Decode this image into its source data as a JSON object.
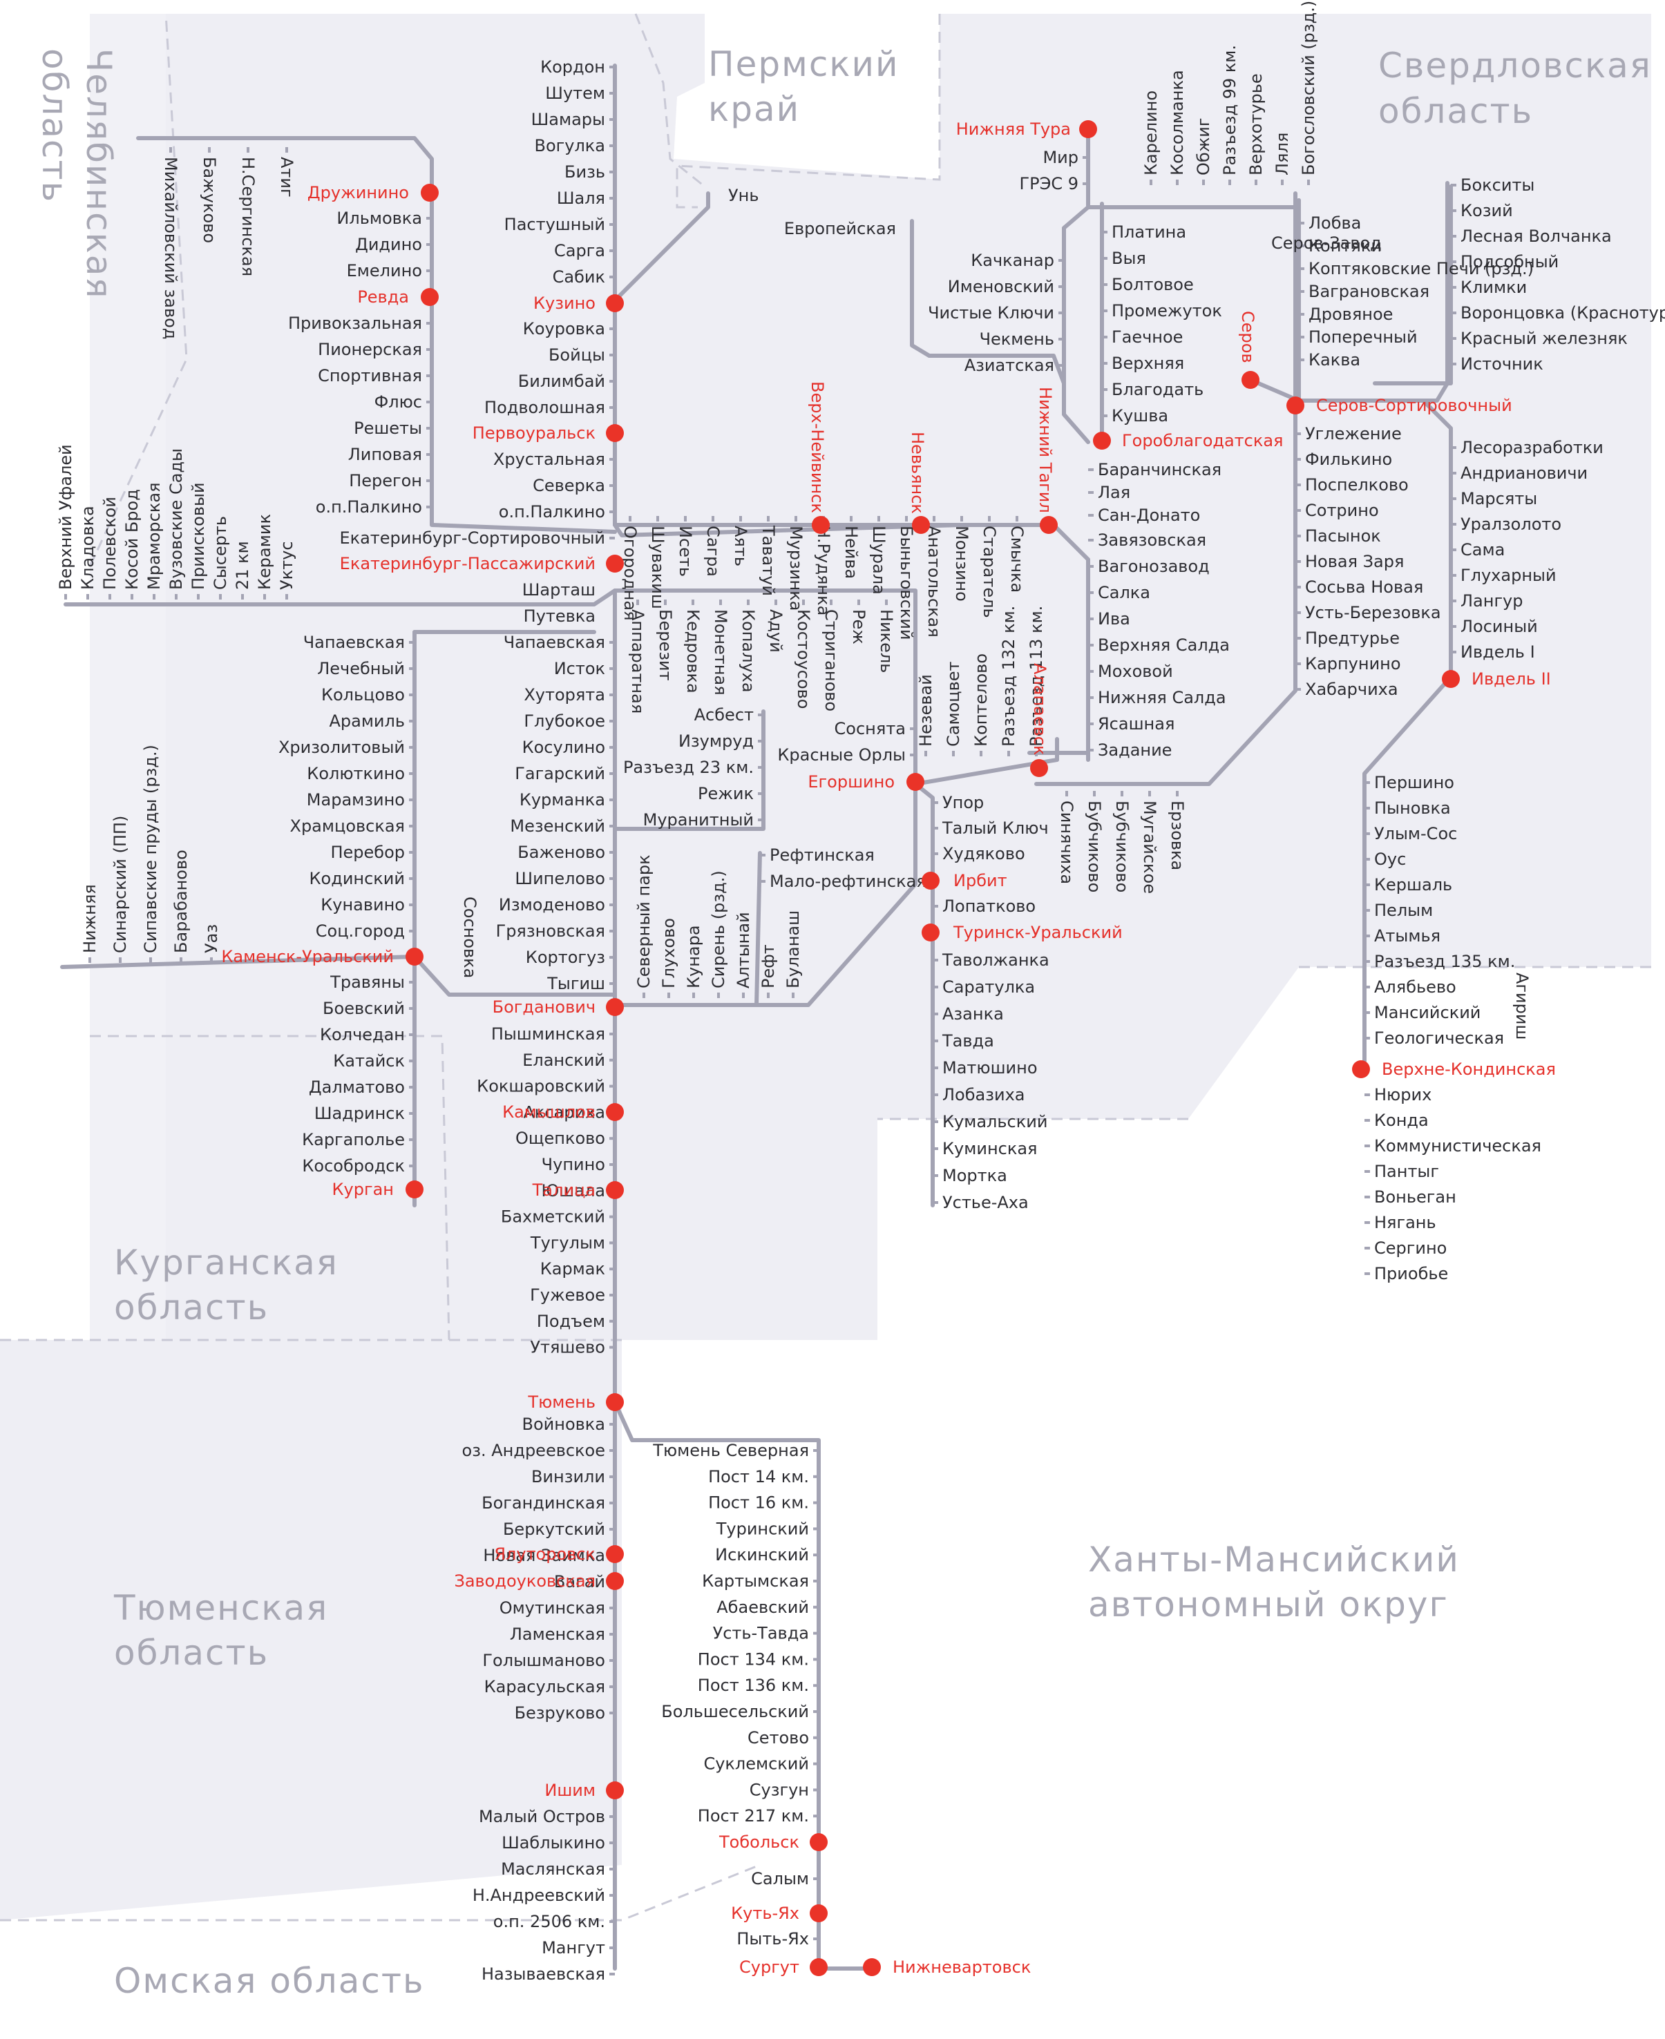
{
  "colors": {
    "rail": "#a3a3b3",
    "hub": "#ea3328",
    "hub_text": "#e5312b",
    "station_text": "#2e2e33",
    "region_text": "#a8a8b4",
    "region_fill": "#eeeef4"
  },
  "regions": {
    "perm": [
      "Пермский",
      "край"
    ],
    "sverdlovsk": [
      "Свердловская",
      "область"
    ],
    "chelyabinsk": [
      "Челябинская",
      "область"
    ],
    "kurgan": [
      "Курганская",
      "область"
    ],
    "tyumen": [
      "Тюменская",
      "область"
    ],
    "khmao": [
      "Ханты-Мансийский",
      "автономный округ"
    ],
    "omsk": [
      "Омская область"
    ]
  },
  "hubs": {
    "druzhinino": "Дружинино",
    "revda": "Ревда",
    "kuzino": "Кузино",
    "pervouralsk": "Первоуральск",
    "ekb": "Екатеринбург-Пассажирский",
    "nizhnyaya_tura": "Нижняя Тура",
    "serov": "Серов",
    "serov_sort": "Серов-Сортировочный",
    "goroblagodatskaya": "Гороблагодатская",
    "verkh_neyvinsk": "Верх-Нейвинск",
    "nevyansk": "Невьянск",
    "nizhniy_tagil": "Нижний Тагил",
    "alapaevsk": "Алапаевск",
    "egorshino": "Егоршино",
    "irbit": "Ирбит",
    "turinsk": "Туринск-Уральский",
    "ivdel": "Ивдель II",
    "verkhne_kondinskaya": "Верхне-Кондинская",
    "kamensk": "Каменск-Уральский",
    "bogdanovich": "Богданович",
    "kamyshlov": "Камышлов",
    "talitsa": "Талица",
    "kurgan": "Курган",
    "tyumen": "Тюмень",
    "yalutorovsk": "Ялуторовск",
    "zavodoukovskaya": "Заводоуковская",
    "ishim": "Ишим",
    "tobolsk": "Тобольск",
    "kut_yakh": "Куть-Ях",
    "surgut": "Сургут",
    "nizhnevartovsk": "Нижневартовск"
  },
  "stations": {
    "perm_main": [
      "Кордон",
      "Шутем",
      "Шамары",
      "Вогулка",
      "Бизь",
      "Шаля",
      "Пастушный",
      "Сарга",
      "Сабик"
    ],
    "kuzino_ekb": [
      "Коуровка",
      "Бойцы",
      "Билимбай",
      "Подволошная"
    ],
    "perv_ekb": [
      "Хрустальная",
      "Северка",
      "о.п.Палкино",
      "Екатеринбург-Сортировочный"
    ],
    "druzh_revda": [
      "Ильмовка",
      "Дидино",
      "Емелино"
    ],
    "revda_sort": [
      "Привокзальная",
      "Пионерская",
      "Спортивная",
      "Флюс",
      "Решеты",
      "Липовая",
      "Перегон",
      "о.п.Палкино"
    ],
    "ufa_line": [
      "Верхний Уфалей",
      "Кладовка",
      "Полевской",
      "Косой Брод",
      "Мраморская",
      "Вузовские Сады",
      "Приисковый",
      "Сысерть",
      "21 км",
      "Керамик",
      "Уктус"
    ],
    "mikh_line": [
      "Михайловский завод",
      "Бажуково",
      "Н.Сергинская",
      "Атиг"
    ],
    "un": "Унь",
    "evropeyskaya": "Европейская",
    "nt_branch": [
      "Мир",
      "ГРЭС 9"
    ],
    "north_top": [
      "Карелино",
      "Косолманка",
      "Обжиг",
      "Разъезд 99 км.",
      "Верхотурье",
      "Ляля",
      "Богословский (рзд.)"
    ],
    "gorob_line": [
      "Платина",
      "Выя",
      "Болтовое",
      "Промежуток",
      "Гаечное",
      "Верхняя",
      "Благодать",
      "Кушва"
    ],
    "kach_line": [
      "Качканар",
      "Именовский",
      "Чистые Ключи",
      "Чекмень",
      "Азиатская"
    ],
    "serov_north": [
      "Лобва",
      "Коптяки",
      "Коптяковские Печи (рзд.)",
      "Ваграновская",
      "Дровяное",
      "Поперечный",
      "Каква"
    ],
    "serov_zavod": "Серов-Завод",
    "ivdel_branch": [
      "Бокситы",
      "Козий",
      "Лесная Волчанка",
      "Подсобный",
      "Климки",
      "Воронцовка (Краснотурьинская)",
      "Красный железняк",
      "Источник"
    ],
    "ekb_tagil": [
      "Огородная",
      "Шувакиш",
      "Исеть",
      "Сагра",
      "Аять",
      "Таватуй",
      "Мурзинка",
      "Н.Рудянка",
      "Нейва",
      "Шурала",
      "Быньговский",
      "Анатольская",
      "Монзино",
      "Старатель",
      "Смычка"
    ],
    "tagil_south": [
      "Баранчинская",
      "Лая",
      "Сан-Донато"
    ],
    "salda_line": [
      "Завязовская",
      "Вагонозавод",
      "Салка",
      "Ива",
      "Верхняя Салда",
      "Моховой",
      "Нижняя Салда",
      "Ясашная",
      "Задание"
    ],
    "serov_south": [
      "Углежение",
      "Филькино",
      "Поспелково",
      "Сотрино",
      "Пасынок",
      "Новая Заря",
      "Сосьва Новая",
      "Усть-Березовка",
      "Предтурье",
      "Карпунино",
      "Хабарчиха"
    ],
    "ivdel_north": [
      "Лесоразработки",
      "Андриановичи",
      "Марсяты",
      "Уралзолото",
      "Сама",
      "Глухарный",
      "Лангур",
      "Лосиный",
      "Ивдель I"
    ],
    "sharash": "Шарташ",
    "putevka": "Путевка",
    "egor_top": [
      "Аппаратная",
      "Березит",
      "Кедровка",
      "Монетная",
      "Копалуха",
      "Адуй",
      "Костоусово",
      "Стриганово",
      "Реж",
      "Никель"
    ],
    "alap_top": [
      "Незевай",
      "Самоцвет",
      "Коптелово",
      "Разъезд 132 км.",
      "Разъезд 113 км."
    ],
    "soshnata": [
      "Соснята",
      "Красные Орлы"
    ],
    "asbest": [
      "Асбест",
      "Изумруд",
      "Разъезд 23 км.",
      "Режик",
      "Муранитный"
    ],
    "alap_south": [
      "Синячиха",
      "Бубчиково",
      "Бубчиково",
      "Мугайское",
      "Ерзовка"
    ],
    "irbit_line": [
      "Упор",
      "Талый Ключ",
      "Худяково"
    ],
    "turinsk_line": [
      "Лопатково"
    ],
    "tavda_line": [
      "Таволжанка",
      "Саратулка",
      "Азанка",
      "Тавда",
      "Матюшино",
      "Лобазиха",
      "Кумальский",
      "Куминская",
      "Мортка",
      "Устье-Аха"
    ],
    "ekb_bog": [
      "Чапаевская",
      "Исток",
      "Хуторята",
      "Глубокое",
      "Косулино",
      "Гагарский",
      "Курманка",
      "Мезенский",
      "Баженово",
      "Шипелово",
      "Измоденово",
      "Грязновская",
      "Кортогуз",
      "Тыгиш"
    ],
    "sosnovka": "Сосновка",
    "reft": [
      "Рефтинская",
      "Мало-рефтинская"
    ],
    "bog_reft": [
      "Северный парк",
      "Глухово",
      "Кунара",
      "Сирень (рзд.)",
      "Алтынай",
      "Рефт",
      "Буланаш"
    ],
    "kamensk_north": [
      "Чапаевская",
      "Лечебный",
      "Кольцово",
      "Арамиль",
      "Хризолитовый",
      "Колюткино",
      "Марамзино",
      "Храмцовская",
      "Перебор",
      "Кодинский",
      "Кунавино",
      "Соц.город"
    ],
    "kamensk_west": [
      "Нижняя",
      "Синарский (ПП)",
      "Сипавские пруды (рзд.)",
      "Барабаново",
      "Уаз"
    ],
    "kamensk_kurgan": [
      "Травяны",
      "Боевский",
      "Колчедан",
      "Катайск",
      "Далматово",
      "Шадринск",
      "Каргаполье",
      "Кособродск"
    ],
    "bog_tyumen": [
      "Пышминская",
      "Еланский",
      "Кокшаровский",
      "Аксариха",
      "Ощепково",
      "Чупино",
      "Юшала",
      "Бахметский",
      "Тугулым",
      "Кармак",
      "Гужевое",
      "Подъем",
      "Утяшево"
    ],
    "tyumen_ishim": [
      "Войновка",
      "оз. Андреевское",
      "Винзили",
      "Богандинская",
      "Беркутский",
      "Новая Заимка",
      "Вагай",
      "Омутинская",
      "Ламенская",
      "Голышманово",
      "Карасульская",
      "Безруково"
    ],
    "ishim_south": [
      "Малый Остров",
      "Шаблыкино",
      "Маслянская",
      "Н.Андреевский",
      "о.п. 2506 км.",
      "Мангут",
      "Называевская"
    ],
    "tobolsk_line": [
      "Тюмень Северная",
      "Пост 14 км.",
      "Пост 16 км.",
      "Туринский",
      "Искинский",
      "Картымская",
      "Абаевский",
      "Усть-Тавда",
      "Пост 134 км.",
      "Пост 136 км.",
      "Большесельский",
      "Сетово",
      "Суклемский",
      "Сузгун",
      "Пост 217 км."
    ],
    "surgut_line": [
      "Салым",
      "Пыть-Ях"
    ],
    "vk_north": [
      "Першино",
      "Пыновка",
      "Улым-Сос",
      "Оус",
      "Кершаль",
      "Пелым",
      "Атымья",
      "Разъезд 135 км.",
      "Алябьево",
      "Мансийский",
      "Геологическая"
    ],
    "agirish": "Агириш",
    "vk_south": [
      "Нюрих",
      "Конда",
      "Коммунистическая",
      "Пантыг",
      "Воньеган",
      "Нягань",
      "Сергино",
      "Приобье"
    ]
  }
}
